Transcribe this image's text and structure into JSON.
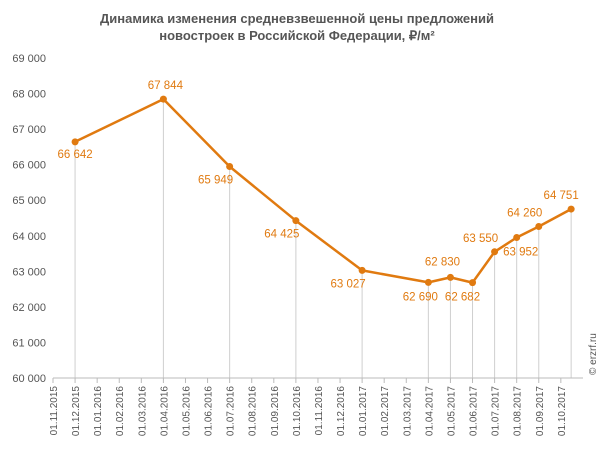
{
  "chart_data": {
    "type": "line",
    "title": "Динамика изменения средневзвешенной цены предложений",
    "title_line2": "новостроек в Российской Федерации, ₽/м²",
    "ylim": [
      60000,
      69000
    ],
    "y_ticks": [
      "69 000",
      "68 000",
      "67 000",
      "66 000",
      "65 000",
      "64 000",
      "63 000",
      "62 000",
      "61 000",
      "60 000"
    ],
    "grid": "dashed vertical drop lines from points",
    "categories": [
      "01.11.2015",
      "01.12.2015",
      "01.01.2016",
      "01.02.2016",
      "01.03.2016",
      "01.04.2016",
      "01.05.2016",
      "01.06.2016",
      "01.07.2016",
      "01.08.2016",
      "01.09.2016",
      "01.10.2016",
      "01.11.2016",
      "01.12.2016",
      "01.01.2017",
      "01.02.2017",
      "01.03.2017",
      "01.04.2017",
      "01.05.2017",
      "01.06.2017",
      "01.07.2017",
      "01.08.2017",
      "01.09.2017",
      "01.10.2017"
    ],
    "series": [
      {
        "color": "#e07a10",
        "points": [
          {
            "x": "01.12.2015",
            "y": 66642,
            "label": "66 642"
          },
          {
            "x": "01.04.2016",
            "y": 67844,
            "label": "67 844"
          },
          {
            "x": "01.07.2016",
            "y": 65949,
            "label": "65 949"
          },
          {
            "x": "01.10.2016",
            "y": 64425,
            "label": "64 425"
          },
          {
            "x": "01.01.2017",
            "y": 63027,
            "label": "63 027"
          },
          {
            "x": "01.04.2017",
            "y": 62690,
            "label": "62 690"
          },
          {
            "x": "01.05.2017",
            "y": 62830,
            "label": "62 830"
          },
          {
            "x": "01.06.2017",
            "y": 62682,
            "label": "62 682"
          },
          {
            "x": "01.07.2017",
            "y": 63550,
            "label": "63 550"
          },
          {
            "x": "01.08.2017",
            "y": 63952,
            "label": "63 952"
          },
          {
            "x": "01.09.2017",
            "y": 64260,
            "label": "64 260"
          },
          {
            "x": "15.10.2017",
            "y": 64751,
            "label": "64 751"
          }
        ]
      }
    ]
  },
  "watermark": "© erzrf.ru",
  "colors": {
    "line": "#e07a10",
    "label": "#e07a10",
    "axis": "#555555",
    "droplines": "#cfcfcf"
  }
}
